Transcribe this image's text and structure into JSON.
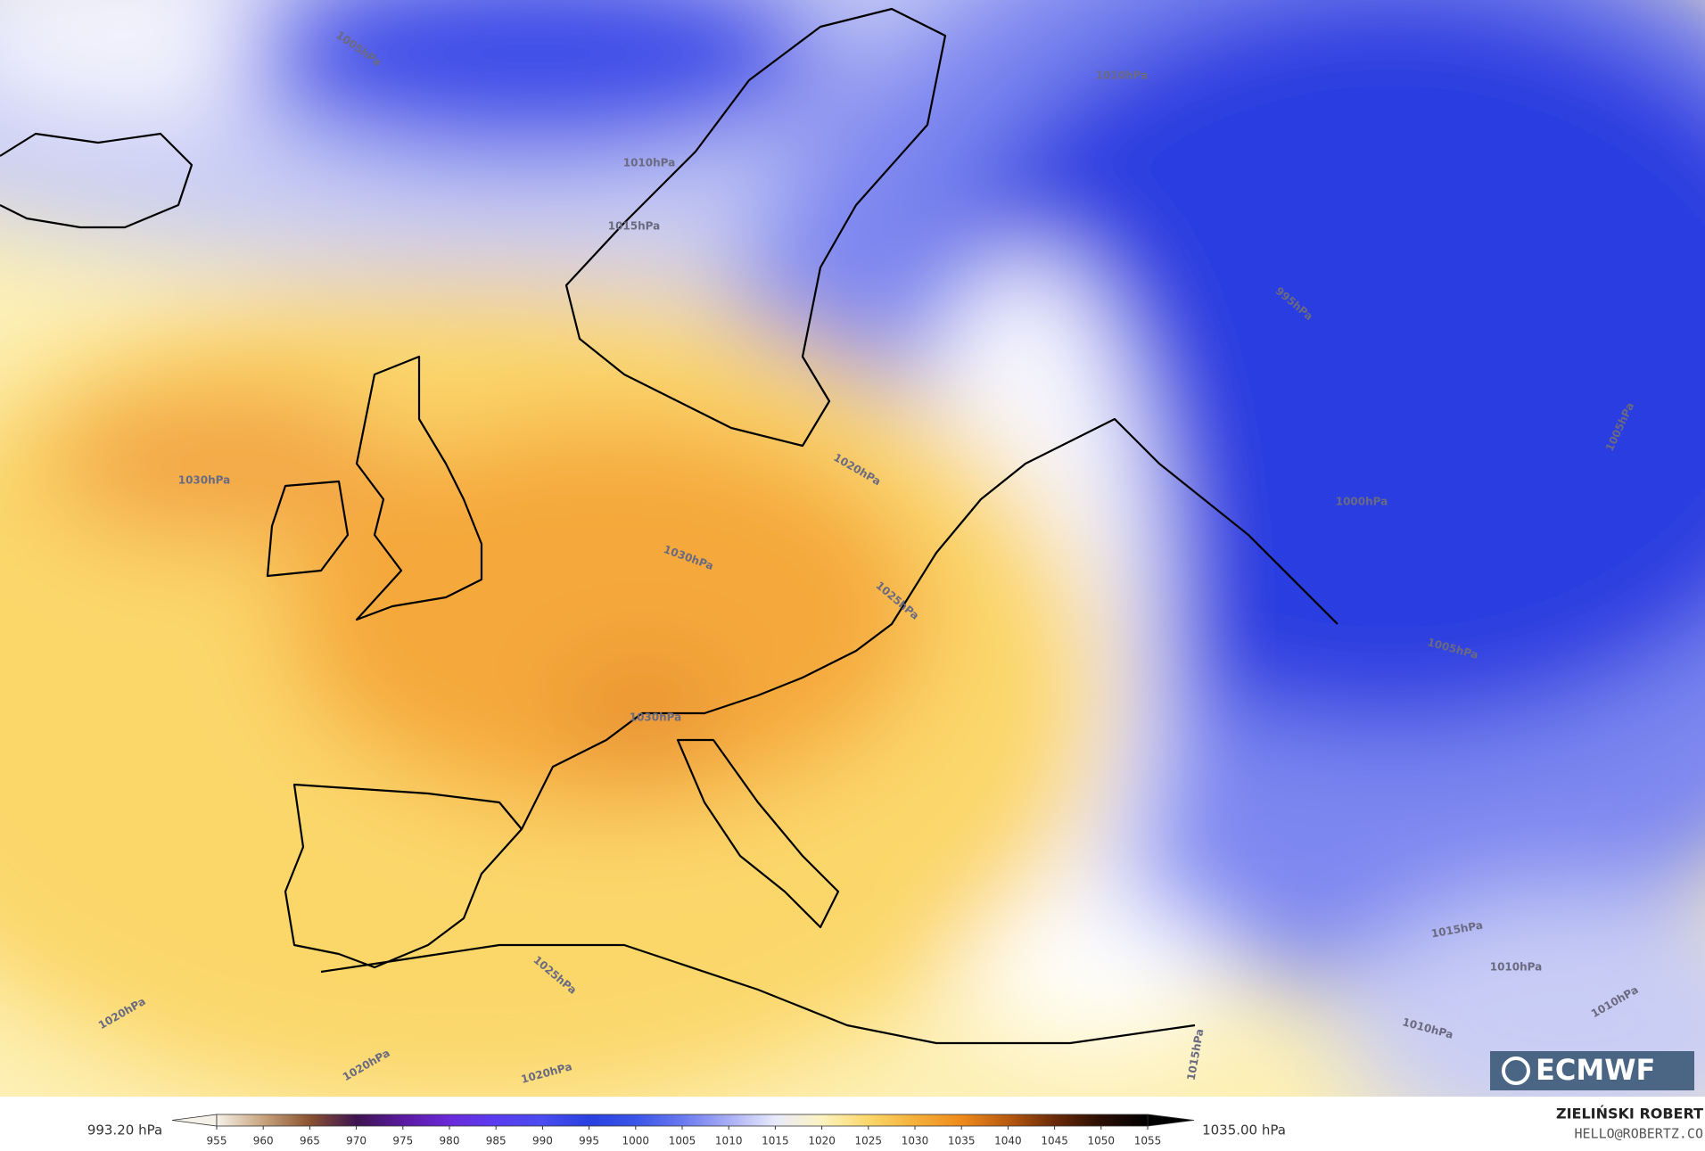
{
  "map": {
    "contour_labels": [
      "1005hPa",
      "1010hPa",
      "1015hPa",
      "1030hPa",
      "1030hPa",
      "1020hPa",
      "1025hPa",
      "1030hPa",
      "1025hPa",
      "1020hPa",
      "1020hPa",
      "1020hPa",
      "1015hPa",
      "1010hPa",
      "995hPa",
      "1000hPa",
      "1005hPa",
      "1005hPa",
      "1015hPa",
      "1010hPa",
      "1010hPa",
      "1010hPa"
    ]
  },
  "logo": "ECMWF",
  "credit": {
    "author": "ZIELIŃSKI ROBERT",
    "email": "HELLO@ROBERTZ.CO"
  },
  "colorbar": {
    "min_label": "993.20 hPa",
    "max_label": "1035.00 hPa",
    "ticks": [
      955,
      960,
      965,
      970,
      975,
      980,
      985,
      990,
      995,
      1000,
      1005,
      1010,
      1015,
      1020,
      1025,
      1030,
      1035,
      1040,
      1045,
      1050,
      1055
    ],
    "colors": [
      "#f6f1e8",
      "#c8a47e",
      "#8a5230",
      "#3d1450",
      "#5a1aa0",
      "#6a2ad8",
      "#5a3cf0",
      "#4a4cf0",
      "#2a40e0",
      "#3a55e8",
      "#6a78f0",
      "#a8aef5",
      "#e8eafc",
      "#fdf3c0",
      "#fbd76a",
      "#f5b03a",
      "#ee8a1c",
      "#b85a10",
      "#6a2a08",
      "#2a0e04",
      "#000000"
    ]
  }
}
